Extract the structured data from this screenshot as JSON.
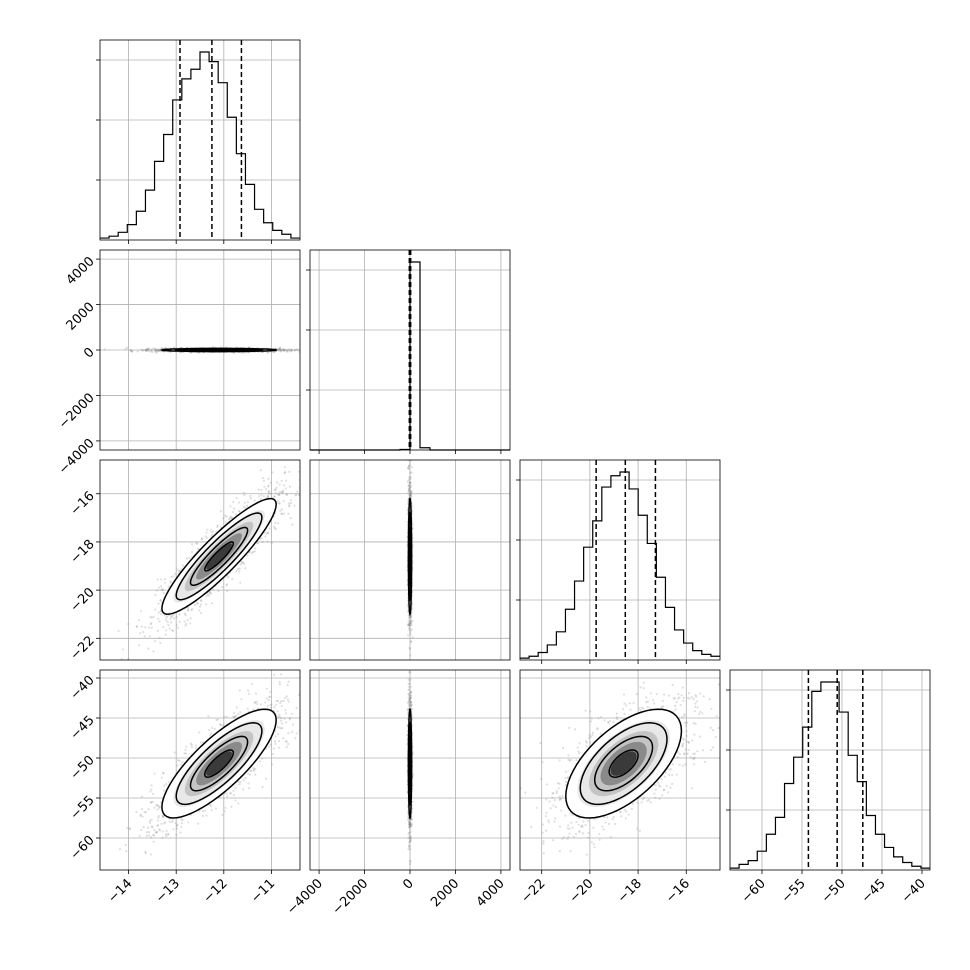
{
  "chart_data": {
    "type": "corner",
    "parameters": [
      {
        "index": 0,
        "range": [
          -14.6,
          -10.4
        ],
        "ticks": [
          -14,
          -13,
          -12,
          -11
        ],
        "tick_labels": [
          "−14",
          "−13",
          "−12",
          "−11"
        ],
        "mean": -12.1,
        "sd": 0.6,
        "quantiles": [
          -12.92,
          -12.25,
          -11.63
        ],
        "hist_counts": [
          1,
          2,
          4,
          8,
          15,
          26,
          41,
          55,
          73,
          84,
          89,
          98,
          93,
          82,
          64,
          45,
          29,
          16,
          9,
          5,
          3,
          1
        ]
      },
      {
        "index": 1,
        "range": [
          -4400,
          4400
        ],
        "ticks": [
          -4000,
          -2000,
          0,
          2000,
          4000
        ],
        "tick_labels": [
          "−4000",
          "−2000",
          "0",
          "2000",
          "4000"
        ],
        "mean": 0,
        "sd": 35,
        "quantiles": [
          -30,
          0,
          30
        ],
        "hist_bins": {
          "lo": -4400,
          "hi": 4400,
          "n": 20
        },
        "hist_counts": [
          0,
          0,
          0,
          0,
          0,
          0,
          0,
          0,
          0,
          0.3,
          100,
          1.2,
          0,
          0,
          0,
          0,
          0,
          0,
          0,
          0
        ]
      },
      {
        "index": 2,
        "range": [
          -22.9,
          -14.6
        ],
        "ticks": [
          -22,
          -20,
          -18,
          -16
        ],
        "tick_labels": [
          "−22",
          "−20",
          "−18",
          "−16"
        ],
        "mean": -18.6,
        "sd": 1.2,
        "quantiles": [
          -19.74,
          -18.53,
          -17.28
        ],
        "hist_counts": [
          1,
          2,
          4,
          8,
          15,
          27,
          42,
          60,
          74,
          92,
          98,
          100,
          91,
          77,
          62,
          44,
          28,
          16,
          9,
          5,
          3,
          2
        ]
      },
      {
        "index": 3,
        "range": [
          -64.0,
          -39.0
        ],
        "ticks": [
          -60,
          -55,
          -50,
          -45,
          -40
        ],
        "tick_labels": [
          "−60",
          "−55",
          "−50",
          "−45",
          "−40"
        ],
        "mean": -50.7,
        "sd": 3.4,
        "quantiles": [
          -54.2,
          -50.6,
          -47.4
        ],
        "hist_counts": [
          1,
          3,
          5,
          10,
          19,
          28,
          46,
          60,
          76,
          95,
          100,
          100,
          84,
          61,
          47,
          29,
          19,
          12,
          7,
          4,
          2,
          1
        ]
      }
    ],
    "correlations": [
      [
        1,
        0,
        0.9,
        0.8
      ],
      [
        0,
        1,
        0,
        0
      ],
      [
        0.9,
        0,
        1,
        0.6
      ],
      [
        0.8,
        0,
        0.6,
        1
      ]
    ],
    "grid": true,
    "colors": {
      "line": "#000000",
      "scatter": "#808080",
      "grid": "#b0b0b0"
    }
  }
}
